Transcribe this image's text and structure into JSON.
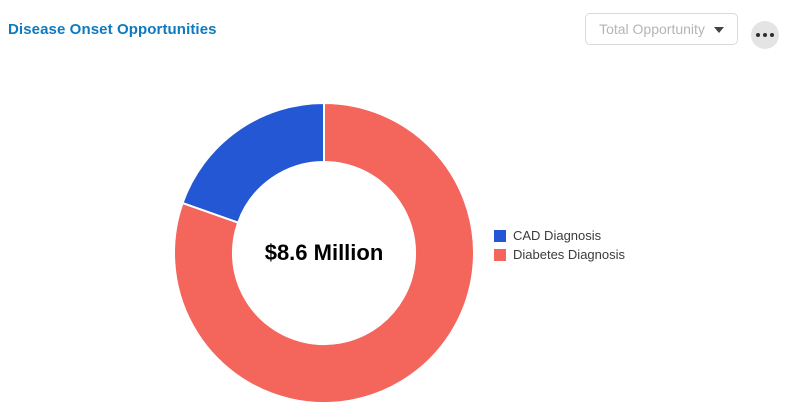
{
  "header": {
    "title": "Disease Onset Opportunities",
    "metric_dropdown": {
      "value": "Total Opportunity",
      "icon": "chevron-down"
    },
    "more_button": {
      "icon": "ellipsis"
    }
  },
  "colors": {
    "title": "#0d7abf",
    "cad_blue": "#2457d4",
    "diabetes_salmon": "#f4655c",
    "dropdown_text": "#b5b5b5",
    "dropdown_border": "#d9d9d9",
    "more_button_bg": "#e4e4e4",
    "legend_text": "#3b3b3b"
  },
  "chart_data": {
    "type": "pie",
    "subtype": "donut",
    "title": "Disease Onset Opportunities",
    "center_label": "$8.6 Million",
    "series": [
      {
        "name": "CAD Diagnosis",
        "percent_estimate": 19.6,
        "color": "#2457d4"
      },
      {
        "name": "Diabetes Diagnosis",
        "percent_estimate": 80.4,
        "color": "#f4655c"
      }
    ],
    "legend_position": "right",
    "start_angle_deg": -90,
    "direction": "counterclockwise",
    "inner_radius_ratio": 0.607,
    "slice_separator_color": "#ffffff"
  }
}
